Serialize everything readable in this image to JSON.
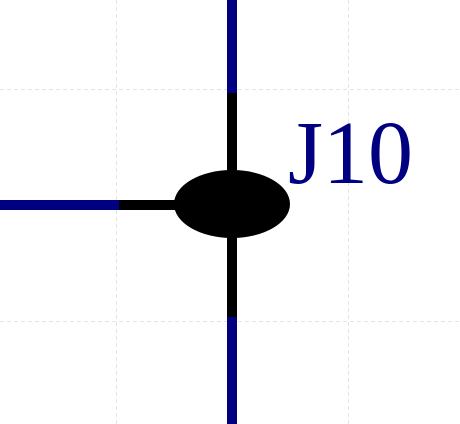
{
  "junction": {
    "label": "J10",
    "label_color": "#000080"
  },
  "colors": {
    "background": "#ffffff",
    "grid": "#e4e4e4",
    "wire_net": "#000080",
    "wire_stub": "#000000",
    "junction_fill": "#000000"
  },
  "grid": {
    "visible": true,
    "style": "dashed"
  }
}
